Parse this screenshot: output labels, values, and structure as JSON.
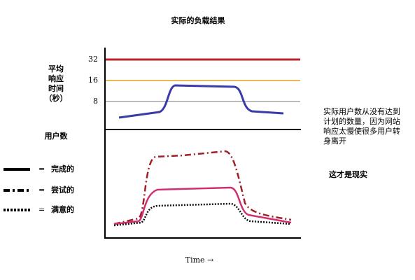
{
  "title": "实际的负载结果",
  "response_axis": {
    "label_lines": [
      "平均",
      "响应",
      "时间",
      "（秒）"
    ],
    "ticks": [
      "32",
      "16",
      "8"
    ]
  },
  "users_label": "用户数",
  "legend": [
    {
      "symbol": "=",
      "label": "完成的"
    },
    {
      "symbol": "=",
      "label": "尝试的"
    },
    {
      "symbol": "=",
      "label": "满意的"
    }
  ],
  "note_lines": [
    "实际用户数从没有达到",
    "计划的数量，因为网站",
    "响应太慢使很多用户转",
    "身离开"
  ],
  "reality": "这才是现实",
  "x_label": "Time →"
}
